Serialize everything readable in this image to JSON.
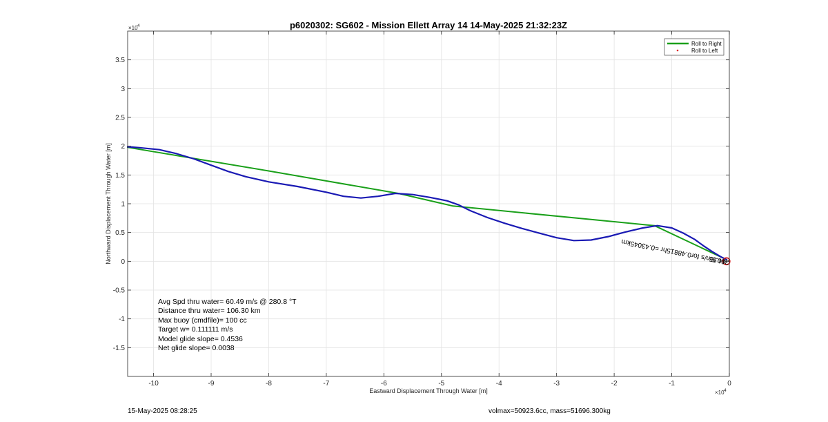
{
  "chart_data": {
    "type": "line",
    "title": "p6020302: SG602 - Mission Ellett Array 14 14-May-2025 21:32:23Z",
    "xlabel": "Eastward Displacement Through Water [m]",
    "ylabel": "Northward Displacement Through Water [m]",
    "x_multiplier": "×10",
    "x_multiplier_exp": "4",
    "y_multiplier": "×10",
    "y_multiplier_exp": "4",
    "xlim": [
      -10.45,
      0
    ],
    "ylim": [
      -2.0,
      4.0
    ],
    "xticks": [
      -10,
      -9,
      -8,
      -7,
      -6,
      -5,
      -4,
      -3,
      -2,
      -1,
      0
    ],
    "xtick_labels": [
      "-10",
      "-9",
      "-8",
      "-7",
      "-6",
      "-5",
      "-4",
      "-3",
      "-2",
      "-1",
      "0"
    ],
    "yticks": [
      -1.5,
      -1,
      -0.5,
      0,
      0.5,
      1,
      1.5,
      2,
      2.5,
      3,
      3.5
    ],
    "ytick_labels": [
      "-1.5",
      "-1",
      "-0.5",
      "0",
      "0.5",
      "1",
      "1.5",
      "2",
      "2.5",
      "3",
      "3.5"
    ],
    "grid": true,
    "legend_position": "top-right",
    "legend": [
      {
        "label": "Roll to Right",
        "color": "#1aa01a",
        "style": "line"
      },
      {
        "label": "Roll to Left",
        "color": "#e02020",
        "style": "dot"
      }
    ],
    "series": [
      {
        "name": "Roll to Right",
        "color": "#1aa01a",
        "x": [
          -10.45,
          -8.0,
          -5.75,
          -4.8,
          -1.3,
          -0.05
        ],
        "y": [
          1.98,
          1.57,
          1.18,
          0.96,
          0.62,
          0.03
        ]
      },
      {
        "color": "#1a1ab4",
        "x": [
          -10.45,
          -10.2,
          -9.9,
          -9.6,
          -9.3,
          -9.0,
          -8.7,
          -8.4,
          -8.0,
          -7.5,
          -7.0,
          -6.7,
          -6.4,
          -6.1,
          -5.8,
          -5.5,
          -5.2,
          -4.9,
          -4.7,
          -4.5,
          -4.2,
          -3.9,
          -3.6,
          -3.3,
          -3.0,
          -2.7,
          -2.4,
          -2.1,
          -1.8,
          -1.5,
          -1.25,
          -1.0,
          -0.8,
          -0.6,
          -0.45,
          -0.3,
          -0.15,
          -0.05
        ],
        "y": [
          1.99,
          1.97,
          1.94,
          1.87,
          1.78,
          1.67,
          1.56,
          1.47,
          1.38,
          1.3,
          1.2,
          1.13,
          1.1,
          1.13,
          1.18,
          1.16,
          1.11,
          1.05,
          0.98,
          0.88,
          0.76,
          0.66,
          0.57,
          0.49,
          0.41,
          0.36,
          0.37,
          0.43,
          0.51,
          0.58,
          0.62,
          0.58,
          0.49,
          0.38,
          0.27,
          0.17,
          0.08,
          0.03
        ]
      }
    ],
    "marker": {
      "x": -0.05,
      "y": 0.0,
      "color": "#d01010"
    },
    "track_annotation": "380.5m/s for0.48815hr =0.43045km",
    "track_annotation_overlap": "44.95",
    "stats": [
      "Avg Spd thru water= 60.49 m/s @ 280.8 °T",
      "Distance thru water= 106.30 km",
      "Max buoy (cmdfile)= 100 cc",
      "Target w= 0.111111 m/s",
      "Model glide slope= 0.4536",
      "Net glide slope= 0.0038"
    ],
    "footer_left": "15-May-2025 08:28:25",
    "footer_right": "volmax=50923.6cc, mass=51696.300kg"
  }
}
